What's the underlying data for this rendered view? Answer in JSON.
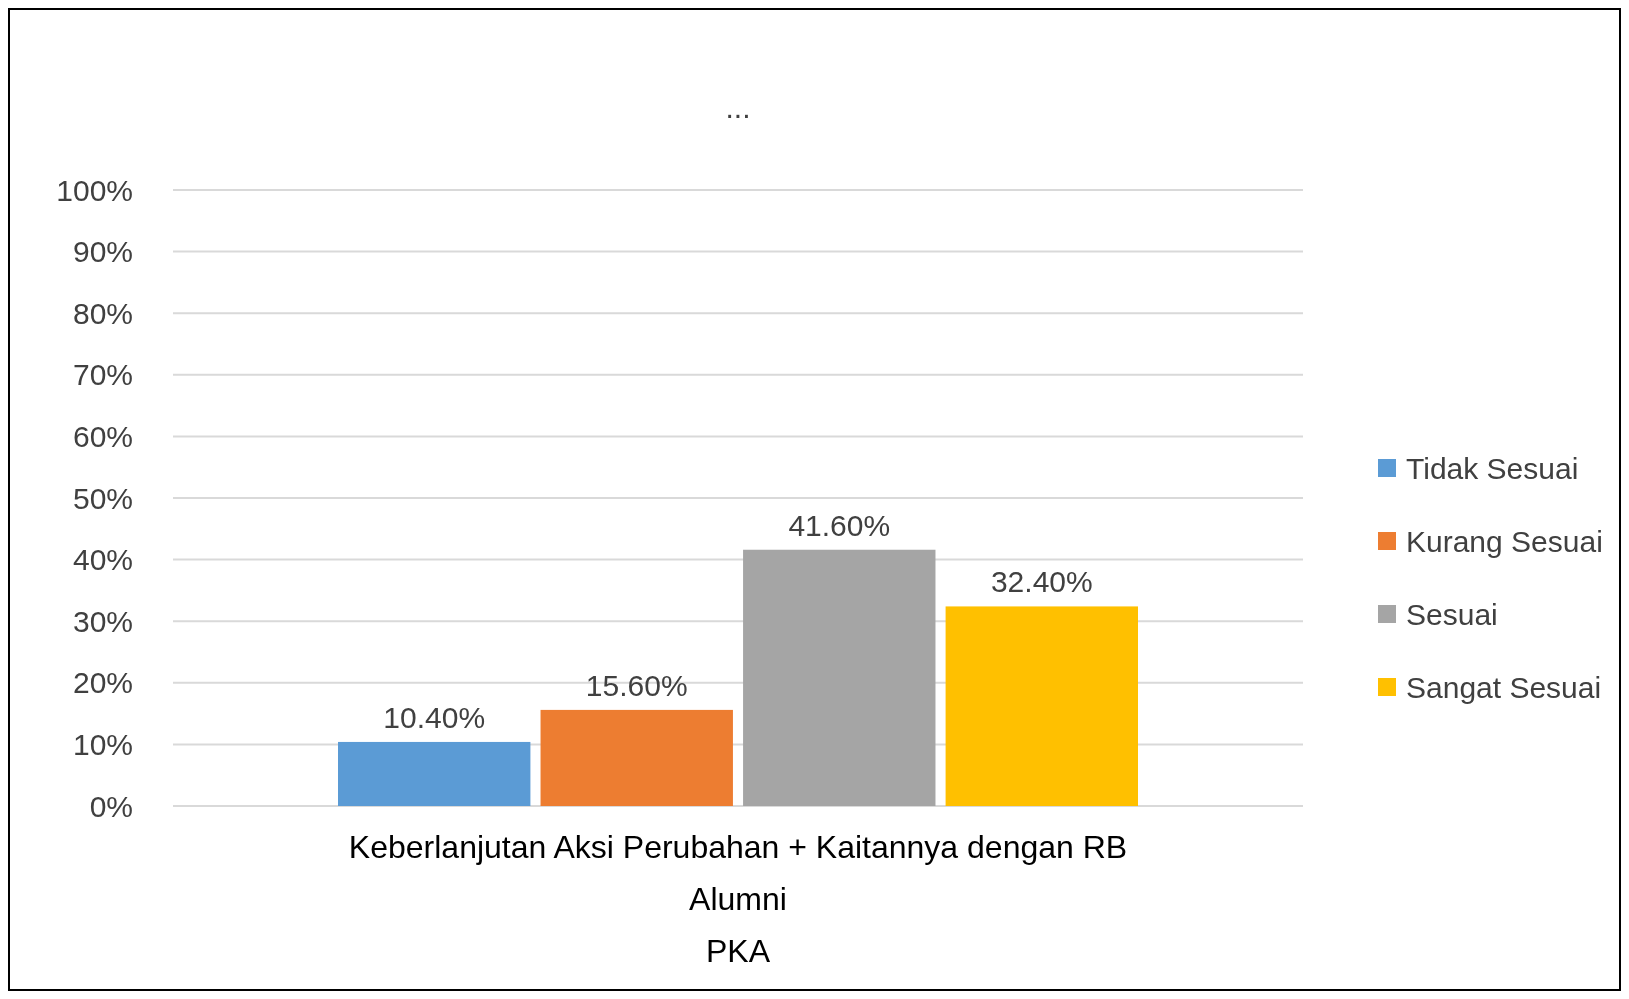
{
  "chart_data": {
    "type": "bar",
    "title": "...",
    "categories": [
      "Keberlanjutan Aksi Perubahan + Kaitannya dengan RB\nAlumni\nPKA"
    ],
    "series": [
      {
        "name": "Tidak Sesuai",
        "color": "#5b9bd5",
        "values": [
          10.4
        ],
        "value_labels": [
          "10.40%"
        ]
      },
      {
        "name": "Kurang Sesuai",
        "color": "#ed7d31",
        "values": [
          15.6
        ],
        "value_labels": [
          "15.60%"
        ]
      },
      {
        "name": "Sesuai",
        "color": "#a5a5a5",
        "values": [
          41.6
        ],
        "value_labels": [
          "41.60%"
        ]
      },
      {
        "name": "Sangat Sesuai",
        "color": "#ffc000",
        "values": [
          32.4
        ],
        "value_labels": [
          "32.40%"
        ]
      }
    ],
    "ylim": [
      0,
      100
    ],
    "yticks": [
      {
        "value": 0,
        "label": "0%"
      },
      {
        "value": 10,
        "label": "10%"
      },
      {
        "value": 20,
        "label": "20%"
      },
      {
        "value": 30,
        "label": "30%"
      },
      {
        "value": 40,
        "label": "40%"
      },
      {
        "value": 50,
        "label": "50%"
      },
      {
        "value": 60,
        "label": "60%"
      },
      {
        "value": 70,
        "label": "70%"
      },
      {
        "value": 80,
        "label": "80%"
      },
      {
        "value": 90,
        "label": "90%"
      },
      {
        "value": 100,
        "label": "100%"
      }
    ],
    "grid": "y",
    "legend": "right"
  }
}
